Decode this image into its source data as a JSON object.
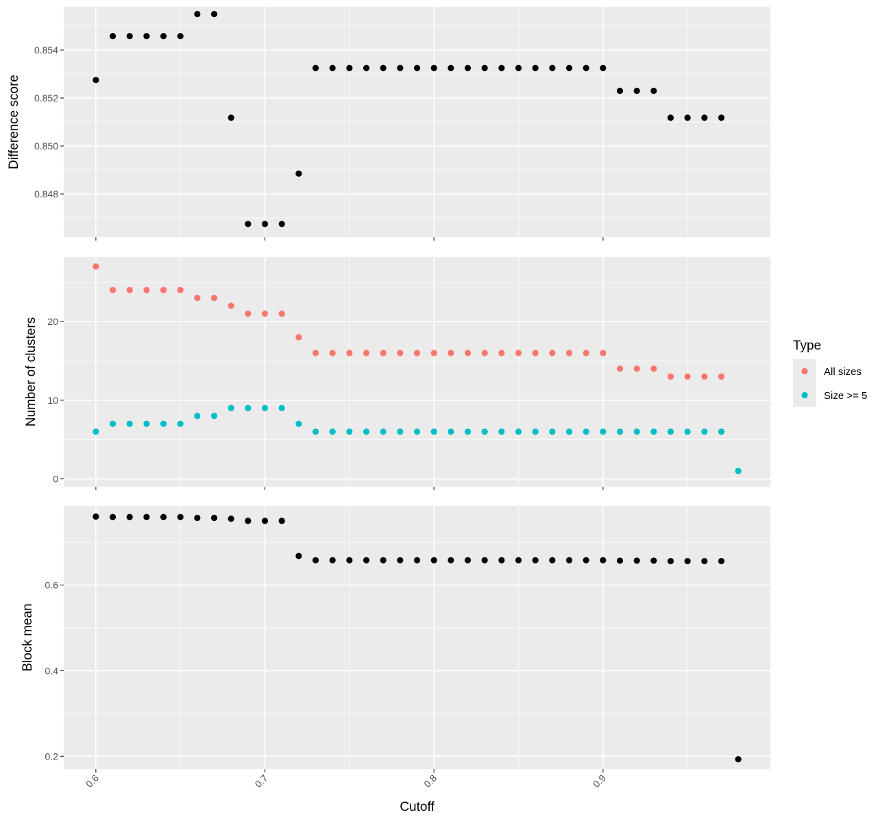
{
  "chart_data": {
    "type": "scatter",
    "xlabel": "Cutoff",
    "xlim": [
      0.581,
      0.999
    ],
    "x_ticks": [
      0.6,
      0.7,
      0.8,
      0.9
    ],
    "x_tick_labels": [
      "0.6",
      "0.7",
      "0.8",
      "0.9"
    ],
    "x_tick_labels_rotated": true,
    "grid": true,
    "legend": {
      "title": "Type",
      "placement": "right",
      "entries": [
        {
          "name": "All sizes",
          "color": "#F8766D"
        },
        {
          "name": "Size >= 5",
          "color": "#00BFC4"
        }
      ]
    },
    "facets": [
      {
        "ylabel": "Difference score",
        "ylim": [
          0.8462,
          0.8558
        ],
        "y_ticks": [
          0.848,
          0.85,
          0.852,
          0.854
        ],
        "y_tick_labels": [
          "0.848",
          "0.850",
          "0.852",
          "0.854"
        ],
        "series": [
          {
            "color": "#000000",
            "x": [
              0.6,
              0.61,
              0.62,
              0.63,
              0.64,
              0.65,
              0.66,
              0.67,
              0.68,
              0.69,
              0.7,
              0.71,
              0.72,
              0.73,
              0.74,
              0.75,
              0.76,
              0.77,
              0.78,
              0.79,
              0.8,
              0.81,
              0.82,
              0.83,
              0.84,
              0.85,
              0.86,
              0.87,
              0.88,
              0.89,
              0.9,
              0.91,
              0.92,
              0.93,
              0.94,
              0.95,
              0.96,
              0.97
            ],
            "y": [
              0.85275,
              0.85458,
              0.85458,
              0.85458,
              0.85458,
              0.85458,
              0.8555,
              0.8555,
              0.85118,
              0.84675,
              0.84675,
              0.84675,
              0.84885,
              0.85325,
              0.85325,
              0.85325,
              0.85325,
              0.85325,
              0.85325,
              0.85325,
              0.85325,
              0.85325,
              0.85325,
              0.85325,
              0.85325,
              0.85325,
              0.85325,
              0.85325,
              0.85325,
              0.85325,
              0.85325,
              0.8523,
              0.8523,
              0.8523,
              0.85118,
              0.85118,
              0.85118,
              0.85118
            ]
          }
        ]
      },
      {
        "ylabel": "Number of clusters",
        "ylim": [
          -1,
          28.2
        ],
        "y_ticks": [
          0,
          10,
          20
        ],
        "y_tick_labels": [
          "0",
          "10",
          "20"
        ],
        "series": [
          {
            "name": "All sizes",
            "color": "#F8766D",
            "x": [
              0.6,
              0.61,
              0.62,
              0.63,
              0.64,
              0.65,
              0.66,
              0.67,
              0.68,
              0.69,
              0.7,
              0.71,
              0.72,
              0.73,
              0.74,
              0.75,
              0.76,
              0.77,
              0.78,
              0.79,
              0.8,
              0.81,
              0.82,
              0.83,
              0.84,
              0.85,
              0.86,
              0.87,
              0.88,
              0.89,
              0.9,
              0.91,
              0.92,
              0.93,
              0.94,
              0.95,
              0.96,
              0.97
            ],
            "y": [
              27,
              24,
              24,
              24,
              24,
              24,
              23,
              23,
              22,
              21,
              21,
              21,
              18,
              16,
              16,
              16,
              16,
              16,
              16,
              16,
              16,
              16,
              16,
              16,
              16,
              16,
              16,
              16,
              16,
              16,
              16,
              14,
              14,
              14,
              13,
              13,
              13,
              13
            ]
          },
          {
            "name": "Size >= 5",
            "color": "#00BFC4",
            "x": [
              0.6,
              0.61,
              0.62,
              0.63,
              0.64,
              0.65,
              0.66,
              0.67,
              0.68,
              0.69,
              0.7,
              0.71,
              0.72,
              0.73,
              0.74,
              0.75,
              0.76,
              0.77,
              0.78,
              0.79,
              0.8,
              0.81,
              0.82,
              0.83,
              0.84,
              0.85,
              0.86,
              0.87,
              0.88,
              0.89,
              0.9,
              0.91,
              0.92,
              0.93,
              0.94,
              0.95,
              0.96,
              0.97,
              0.98
            ],
            "y": [
              6,
              7,
              7,
              7,
              7,
              7,
              8,
              8,
              9,
              9,
              9,
              9,
              7,
              6,
              6,
              6,
              6,
              6,
              6,
              6,
              6,
              6,
              6,
              6,
              6,
              6,
              6,
              6,
              6,
              6,
              6,
              6,
              6,
              6,
              6,
              6,
              6,
              6,
              1
            ]
          }
        ]
      },
      {
        "ylabel": "Block mean",
        "ylim": [
          0.17,
          0.785
        ],
        "y_ticks": [
          0.2,
          0.4,
          0.6
        ],
        "y_tick_labels": [
          "0.2",
          "0.4",
          "0.6"
        ],
        "series": [
          {
            "color": "#000000",
            "x": [
              0.6,
              0.61,
              0.62,
              0.63,
              0.64,
              0.65,
              0.66,
              0.67,
              0.68,
              0.69,
              0.7,
              0.71,
              0.72,
              0.73,
              0.74,
              0.75,
              0.76,
              0.77,
              0.78,
              0.79,
              0.8,
              0.81,
              0.82,
              0.83,
              0.84,
              0.85,
              0.86,
              0.87,
              0.88,
              0.89,
              0.9,
              0.91,
              0.92,
              0.93,
              0.94,
              0.95,
              0.96,
              0.97,
              0.98
            ],
            "y": [
              0.76,
              0.759,
              0.759,
              0.759,
              0.759,
              0.759,
              0.757,
              0.757,
              0.755,
              0.75,
              0.75,
              0.75,
              0.668,
              0.658,
              0.658,
              0.658,
              0.658,
              0.658,
              0.658,
              0.658,
              0.658,
              0.658,
              0.658,
              0.658,
              0.658,
              0.658,
              0.658,
              0.658,
              0.658,
              0.658,
              0.658,
              0.657,
              0.657,
              0.657,
              0.656,
              0.656,
              0.656,
              0.656,
              0.193
            ]
          }
        ]
      }
    ]
  }
}
